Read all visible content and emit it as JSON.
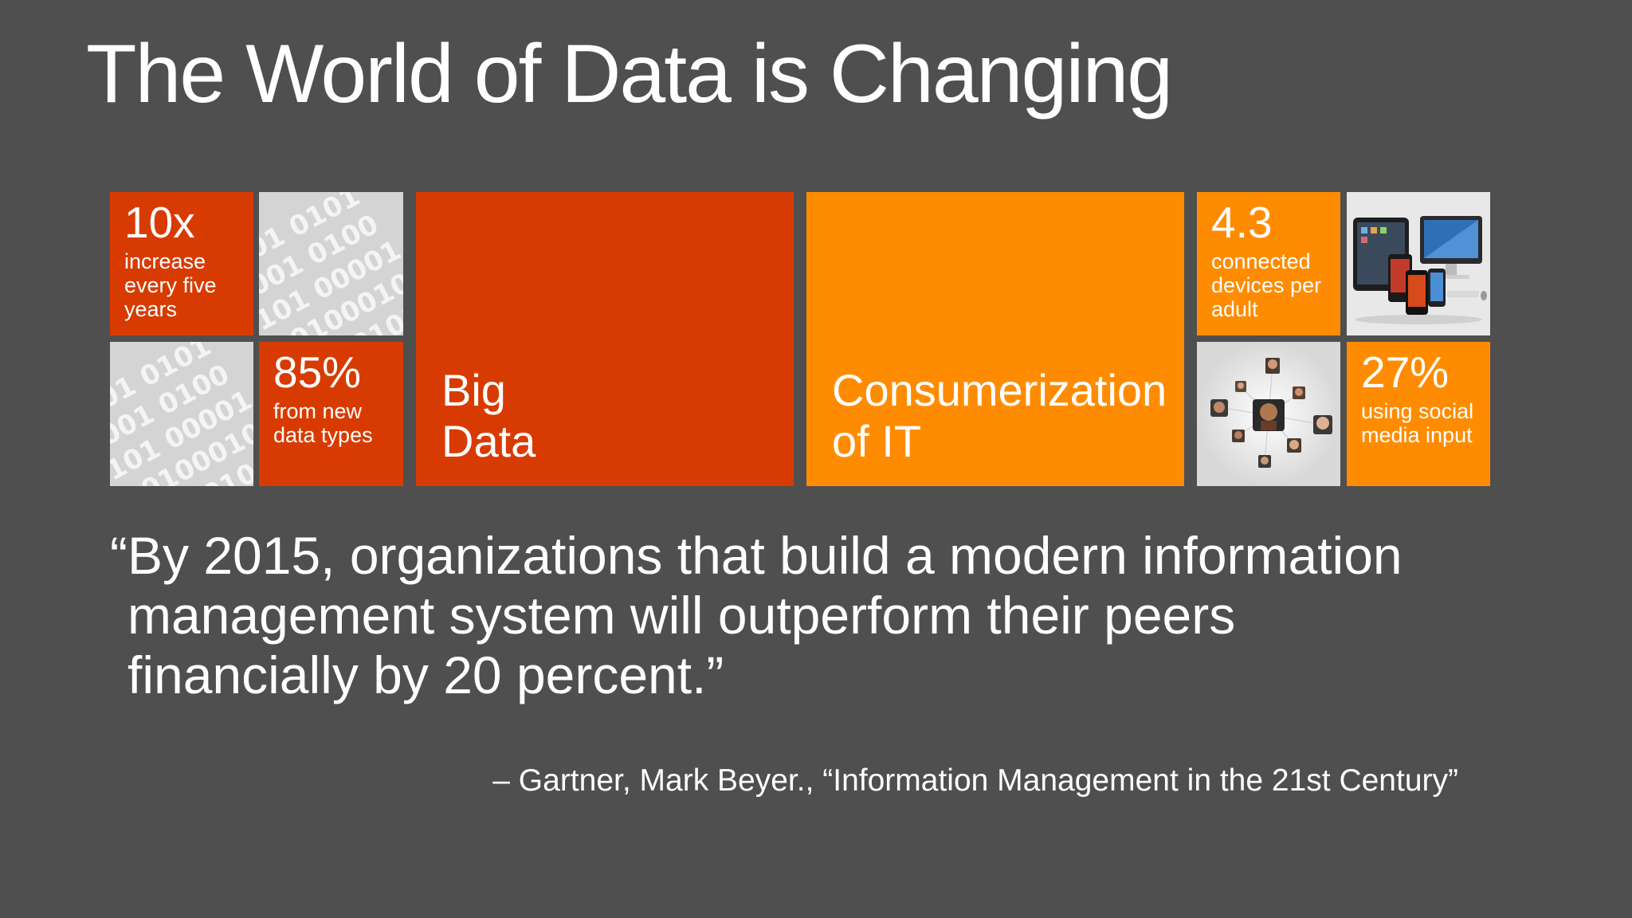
{
  "slide": {
    "title": "The World of Data is Changing"
  },
  "tiles": {
    "increase": {
      "number": "10x",
      "description": "increase every five years"
    },
    "binary_top": {
      "icon": "binary-code-image"
    },
    "binary_bottom": {
      "icon": "binary-code-image"
    },
    "data_types": {
      "number": "85%",
      "description": "from new data types"
    },
    "big_data": {
      "line1": "Big",
      "line2": "Data"
    },
    "consumerization": {
      "line1": "Consumerization",
      "line2": "of IT"
    },
    "devices": {
      "number": "4.3",
      "description": "connected devices per adult"
    },
    "devices_image": {
      "icon": "devices-image"
    },
    "social_image": {
      "icon": "social-network-image"
    },
    "social": {
      "number": "27%",
      "description": "using social media input"
    }
  },
  "quote": {
    "line1": "“By 2015, organizations that build a modern information",
    "line2": "management system will outperform their peers",
    "line3": "financially by 20 percent.”",
    "attribution": "– Gartner, Mark Beyer., “Information Management in the 21st Century”"
  },
  "colors": {
    "background": "#4f4f50",
    "red": "#d83b01",
    "orange": "#ff8c00",
    "text": "#ffffff"
  }
}
